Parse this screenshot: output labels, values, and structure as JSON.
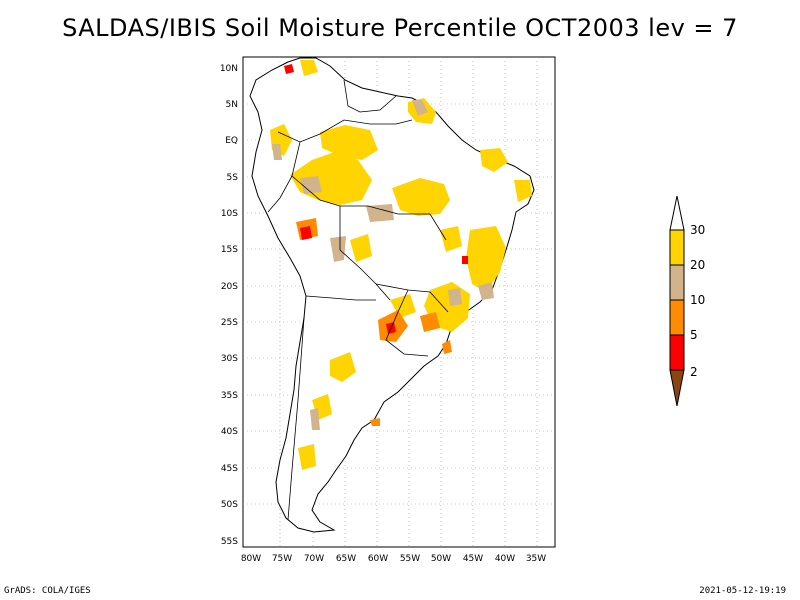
{
  "title": "SALDAS/IBIS Soil Moisture Percentile OCT2003 lev = 7",
  "lat_labels": [
    "10N",
    "5N",
    "EQ",
    "5S",
    "10S",
    "15S",
    "20S",
    "25S",
    "30S",
    "35S",
    "40S",
    "45S",
    "50S",
    "55S"
  ],
  "lon_labels": [
    "80W",
    "75W",
    "70W",
    "65W",
    "60W",
    "55W",
    "50W",
    "45W",
    "40W",
    "35W"
  ],
  "colorbar": {
    "levels": [
      "30",
      "20",
      "10",
      "5",
      "2"
    ],
    "colors": {
      "above": "#ffffff",
      "c20_30": "#ffd400",
      "c10_20": "#d2b48c",
      "c5_10": "#ff8c00",
      "c2_5": "#ff0000",
      "below": "#8b4513"
    }
  },
  "footer": {
    "left": "GrADS: COLA/IGES",
    "right": "2021-05-12-19:19"
  }
}
